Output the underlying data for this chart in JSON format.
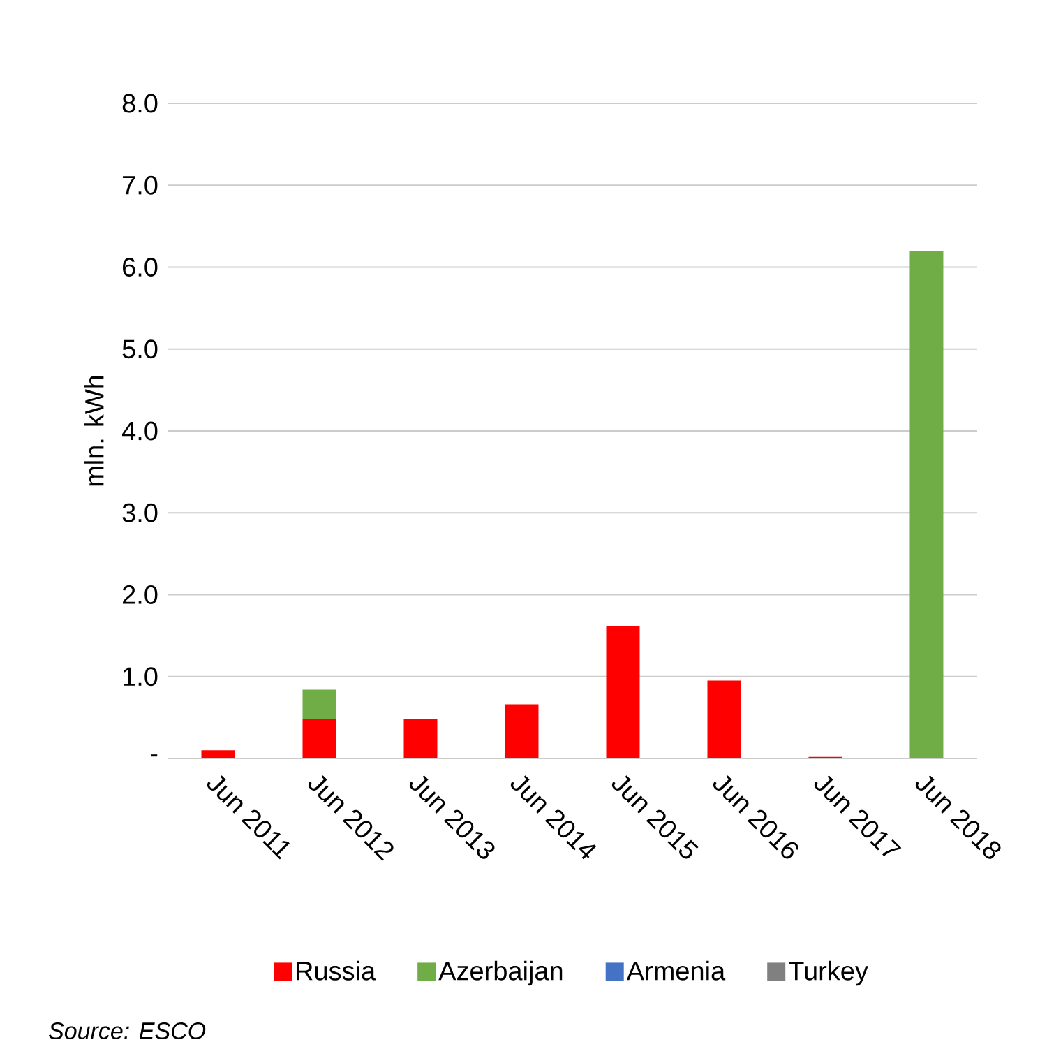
{
  "chart_data": {
    "type": "bar",
    "stacked": true,
    "ylabel": "mln. kWh",
    "categories": [
      "Jun 2011",
      "Jun 2012",
      "Jun 2013",
      "Jun 2014",
      "Jun 2015",
      "Jun 2016",
      "Jun 2017",
      "Jun 2018"
    ],
    "series": [
      {
        "name": "Russia",
        "color": "#ff0000",
        "values": [
          0.1,
          0.48,
          0.48,
          0.66,
          1.62,
          0.95,
          0.02,
          0
        ]
      },
      {
        "name": "Azerbaijan",
        "color": "#70ad47",
        "values": [
          0,
          0.36,
          0,
          0,
          0,
          0,
          0,
          6.2
        ]
      },
      {
        "name": "Armenia",
        "color": "#4472c4",
        "values": [
          0,
          0,
          0,
          0,
          0,
          0,
          0,
          0
        ]
      },
      {
        "name": "Turkey",
        "color": "#808080",
        "values": [
          0,
          0,
          0,
          0,
          0,
          0,
          0,
          0
        ]
      }
    ],
    "ylim": [
      0,
      8
    ],
    "yticks": [
      {
        "value": 0,
        "label": "-"
      },
      {
        "value": 1,
        "label": "1.0"
      },
      {
        "value": 2,
        "label": "2.0"
      },
      {
        "value": 3,
        "label": "3.0"
      },
      {
        "value": 4,
        "label": "4.0"
      },
      {
        "value": 5,
        "label": "5.0"
      },
      {
        "value": 6,
        "label": "6.0"
      },
      {
        "value": 7,
        "label": "7.0"
      },
      {
        "value": 8,
        "label": "8.0"
      }
    ],
    "grid": "y",
    "legend": "bottom",
    "annotations": [
      "Source: ESCO"
    ]
  }
}
